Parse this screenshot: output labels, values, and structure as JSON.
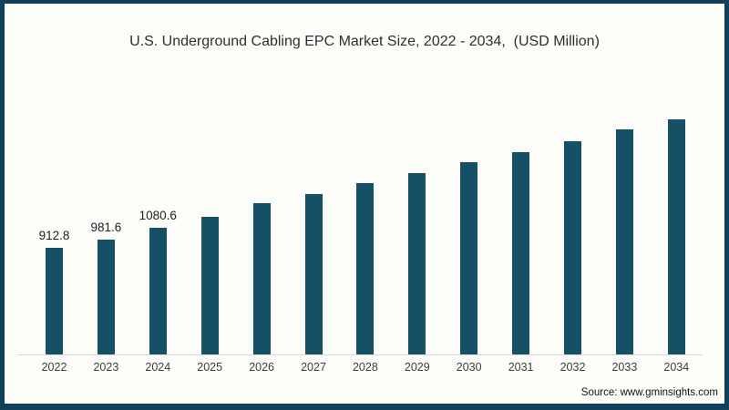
{
  "frame": {
    "border_color": "#123f5a",
    "background_color": "#fdfdfa"
  },
  "chart_data": {
    "type": "bar",
    "title": "U.S. Underground Cabling EPC Market Size, 2022 - 2034,  (USD Million)",
    "xlabel": "",
    "ylabel": "",
    "categories": [
      "2022",
      "2023",
      "2024",
      "2025",
      "2026",
      "2027",
      "2028",
      "2029",
      "2030",
      "2031",
      "2032",
      "2033",
      "2034"
    ],
    "values": [
      912.8,
      981.6,
      1080.6,
      1178,
      1295,
      1373,
      1466,
      1552,
      1646,
      1732,
      1826,
      1927,
      2013
    ],
    "data_labels": [
      "912.8",
      "981.6",
      "1080.6",
      "",
      "",
      "",
      "",
      "",
      "",
      "",
      "",
      "",
      ""
    ],
    "bar_color": "#155066",
    "ylim": [
      0,
      2100
    ],
    "grid": "off",
    "legend": "none",
    "y_axis_visible": false,
    "x_axis_line_visible": true
  },
  "source": {
    "text": "Source: www.gminsights.com"
  }
}
